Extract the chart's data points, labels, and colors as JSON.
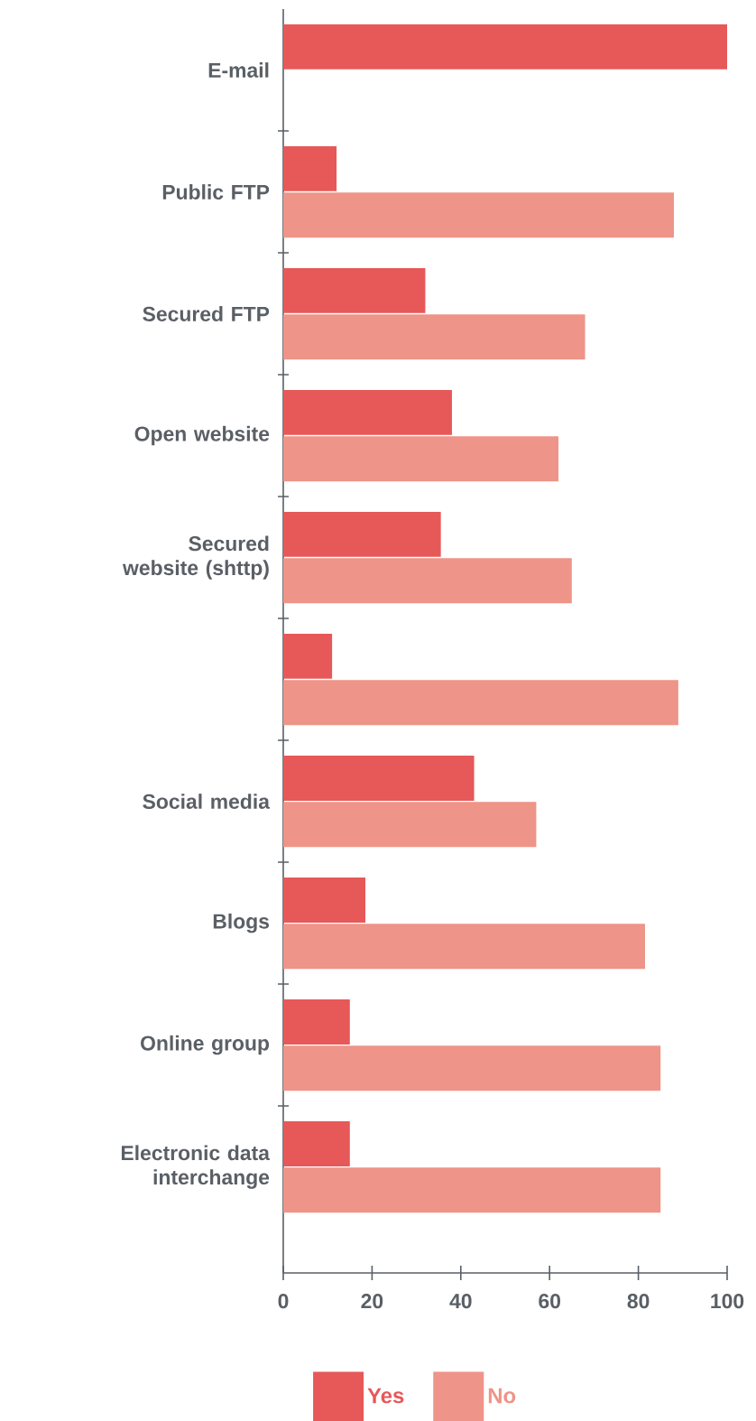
{
  "chart_data": {
    "type": "bar",
    "orientation": "horizontal",
    "categories": [
      "E-mail",
      "Public FTP",
      "Secured FTP",
      "Open website",
      "Secured website (shttp)",
      null,
      "Social media",
      "Blogs",
      "Online group",
      "Electronic data interchange"
    ],
    "series": [
      {
        "name": "Yes",
        "color": "#e75858",
        "values": [
          100,
          12,
          32,
          38,
          35.5,
          11,
          43,
          18.5,
          15,
          15
        ]
      },
      {
        "name": "No",
        "color": "#ee9488",
        "values": [
          null,
          88,
          68,
          62,
          65,
          89,
          57,
          81.5,
          85,
          85
        ]
      }
    ],
    "xlim": [
      0,
      100
    ],
    "xticks": [
      0,
      20,
      40,
      60,
      80,
      100
    ],
    "grid": false,
    "legend": "bottom"
  }
}
